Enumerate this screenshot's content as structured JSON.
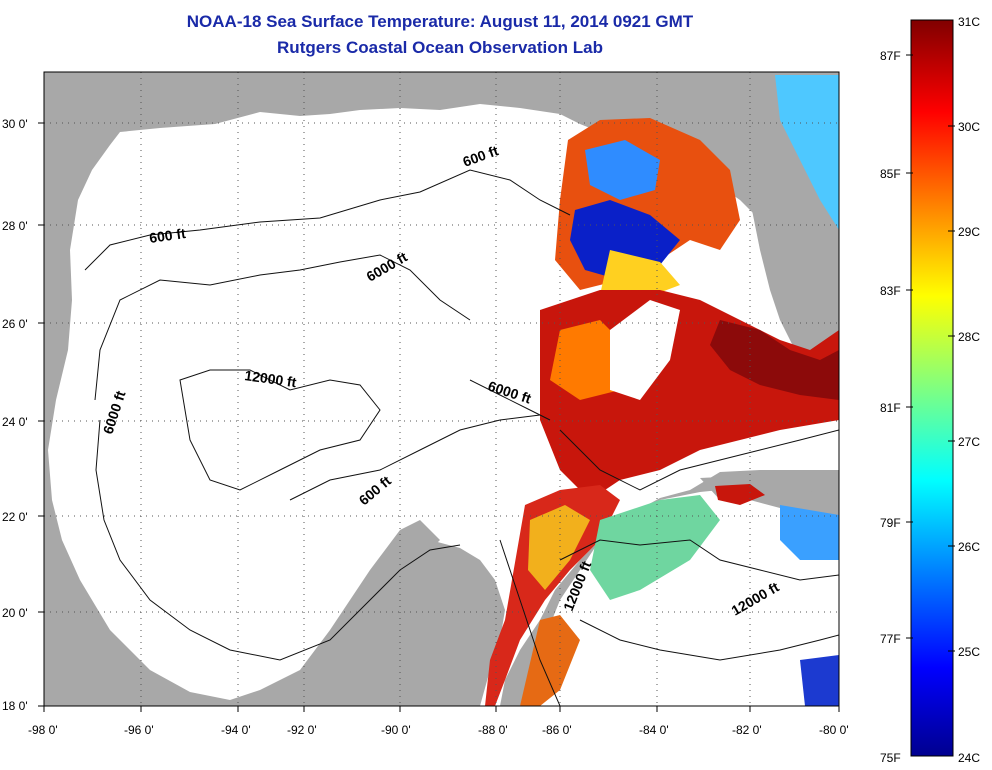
{
  "header": {
    "title": "NOAA-18 Sea Surface Temperature:  August 11, 2014 0921 GMT",
    "subtitle": "Rutgers Coastal Ocean Observation Lab"
  },
  "map": {
    "lon_labels": [
      "-98 0'",
      "-96 0'",
      "-94 0'",
      "-92 0'",
      "-90 0'",
      "-88 0'",
      "-86 0'",
      "-84 0'",
      "-82 0'",
      "-80 0'"
    ],
    "lat_labels": [
      "30 0'",
      "28 0'",
      "26 0'",
      "24 0'",
      "22 0'",
      "20 0'",
      "18 0'"
    ],
    "isobath_labels": [
      "600 ft",
      "600 ft",
      "6000 ft",
      "6000 ft",
      "6000 ft",
      "12000 ft",
      "600 ft",
      "12000 ft",
      "12000 ft"
    ],
    "colors": {
      "land": "#a8a8a8",
      "nodata": "#ffffff",
      "warm": "#c8160c",
      "hot": "#8c0a0a"
    }
  },
  "colorbar": {
    "celsius_labels": [
      "31C",
      "30C",
      "29C",
      "28C",
      "27C",
      "26C",
      "25C",
      "24C"
    ],
    "fahrenheit_labels": [
      "87F",
      "85F",
      "83F",
      "81F",
      "79F",
      "77F",
      "75F"
    ],
    "colors": [
      "#00008f",
      "#0000ff",
      "#0080ff",
      "#00ffff",
      "#80ff80",
      "#ffff00",
      "#ff8000",
      "#ff0000",
      "#800000"
    ]
  }
}
